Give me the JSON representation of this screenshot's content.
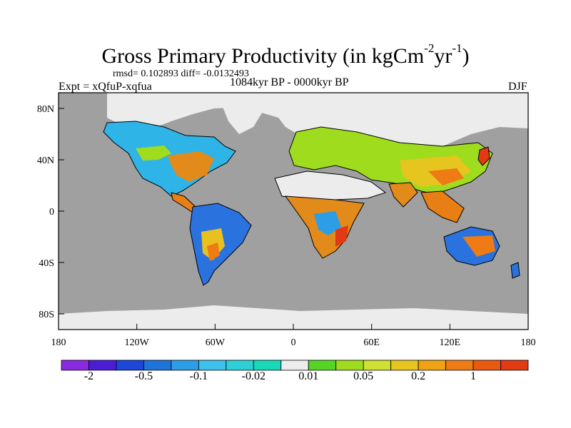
{
  "title": {
    "main": "Gross Primary Productivity (in kgCm",
    "exp1": "-2",
    "mid": "yr",
    "exp2": "-1",
    "end": ")"
  },
  "stats": "rmsd= 0.102893  diff= -0.0132493",
  "experiment": "Expt = xQfuP-xqfua",
  "period": "1084kyr BP - 0000kyr BP",
  "season": "DJF",
  "y_ticks": [
    "80N",
    "40N",
    "0",
    "40S",
    "80S"
  ],
  "x_ticks": [
    "180",
    "120W",
    "60W",
    "0",
    "60E",
    "120E",
    "180"
  ],
  "colorbar": {
    "colors": [
      "#8a2be2",
      "#4b1ed6",
      "#1c47d9",
      "#1f74da",
      "#2c9ee6",
      "#3dc1ec",
      "#2fcfd8",
      "#19d8b8",
      "#ececec",
      "#55d426",
      "#9fdc1e",
      "#cfe033",
      "#e7c51f",
      "#eea214",
      "#ee7b14",
      "#e85a10",
      "#e23a12"
    ],
    "labels": [
      "-2",
      "-0.5",
      "-0.1",
      "-0.02",
      "0.01",
      "0.05",
      "0.2",
      "1"
    ]
  },
  "colors": {
    "ocean": "#a0a0a0",
    "ice": "#ececec",
    "coast": "#000000"
  }
}
